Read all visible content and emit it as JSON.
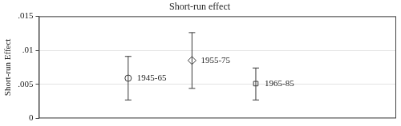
{
  "chart_data": {
    "type": "scatter",
    "title": "Short-run effect",
    "y_label": "Short-run Effect",
    "categories": [
      "1945-65",
      "1955-75",
      "1965-85"
    ],
    "series": [
      {
        "values": [
          0.0059,
          null,
          null
        ],
        "error_low": [
          0.0027,
          null,
          null
        ],
        "error_high": [
          0.0091,
          null,
          null
        ],
        "marker": "circle",
        "color": "#3a3a3a"
      },
      {
        "values": [
          null,
          0.0085,
          null
        ],
        "error_low": [
          null,
          0.0044,
          null
        ],
        "error_high": [
          null,
          0.0126,
          null
        ],
        "marker": "diamond",
        "color": "#3a3a3a"
      },
      {
        "values": [
          null,
          null,
          0.0051
        ],
        "error_low": [
          null,
          null,
          0.0027
        ],
        "error_high": [
          null,
          null,
          0.0074
        ],
        "marker": "square",
        "color": "#3a3a3a"
      }
    ],
    "ylim": [
      0,
      0.015
    ],
    "yticks": [
      0,
      {
        "value": 0.005,
        "label": ".005"
      },
      {
        "value": 0.01,
        "label": ".01"
      },
      {
        "value": 0.015,
        "label": ".015"
      }
    ],
    "grid": true,
    "tick_labels": "y"
  }
}
